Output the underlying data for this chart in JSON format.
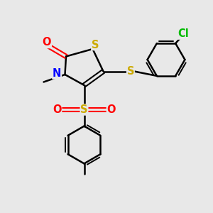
{
  "bg_color": "#e8e8e8",
  "atom_colors": {
    "O": "#ff0000",
    "N": "#0000ff",
    "S": "#ccaa00",
    "Cl": "#00bb00",
    "C": "#000000"
  },
  "bond_color": "#000000"
}
